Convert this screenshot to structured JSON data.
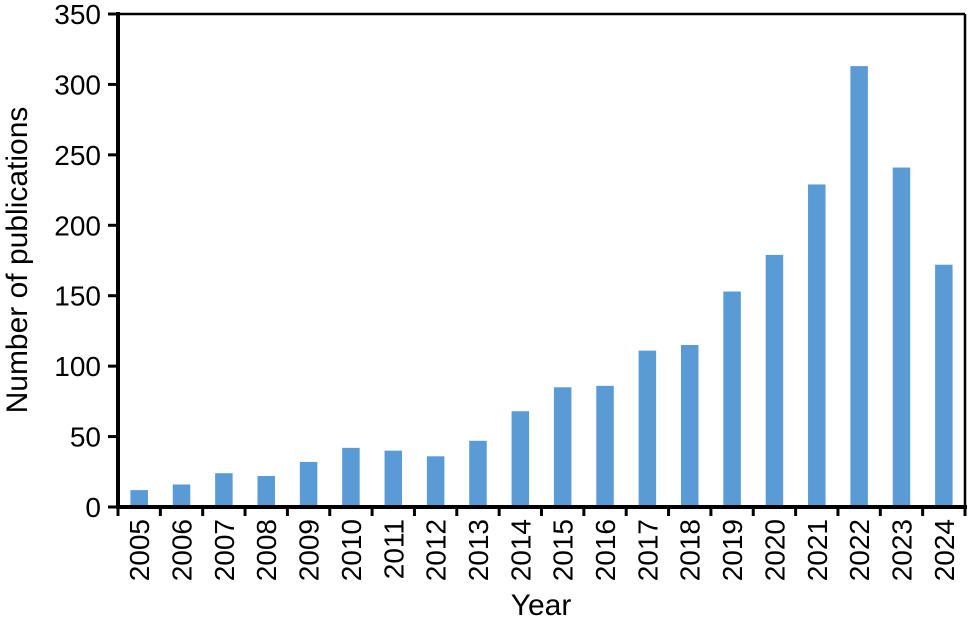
{
  "figure": {
    "background": "#ffffff"
  },
  "chart_data": {
    "type": "bar",
    "title": "",
    "xlabel": "Year",
    "ylabel": "Number of publications",
    "categories": [
      "2005",
      "2006",
      "2007",
      "2008",
      "2009",
      "2010",
      "2011",
      "2012",
      "2013",
      "2014",
      "2015",
      "2016",
      "2017",
      "2018",
      "2019",
      "2020",
      "2021",
      "2022",
      "2023",
      "2024"
    ],
    "values": [
      12,
      16,
      24,
      22,
      32,
      42,
      40,
      36,
      47,
      68,
      85,
      86,
      111,
      115,
      153,
      179,
      229,
      313,
      241,
      172
    ],
    "ylim": [
      0,
      350
    ],
    "yticks": [
      0,
      50,
      100,
      150,
      200,
      250,
      300,
      350
    ],
    "grid": false,
    "legend": "none",
    "bar_color": "#5b9bd5",
    "axis_color": "#000000",
    "x_tick_label_rotation": -90
  }
}
